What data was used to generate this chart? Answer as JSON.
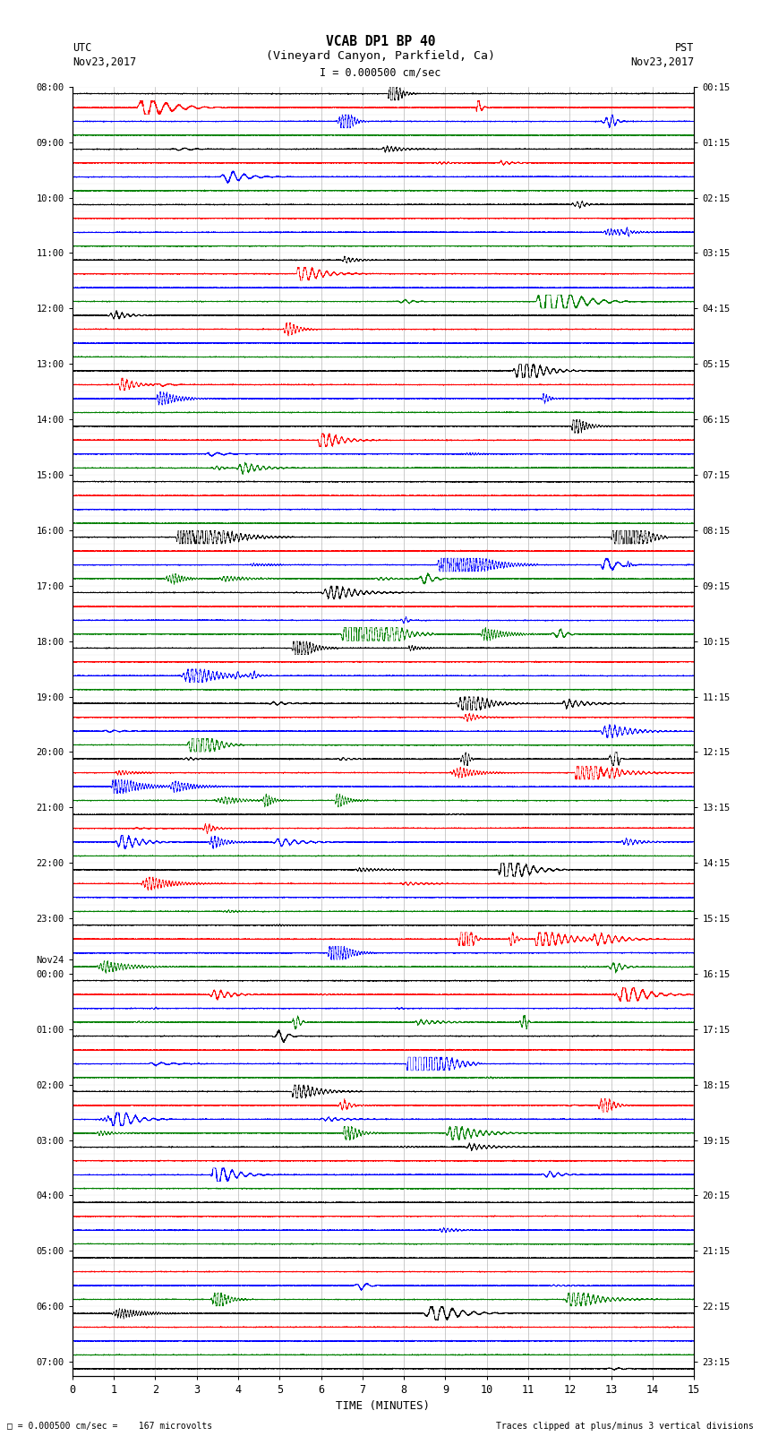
{
  "title_line1": "VCAB DP1 BP 40",
  "title_line2": "(Vineyard Canyon, Parkfield, Ca)",
  "title_line3": "I = 0.000500 cm/sec",
  "left_label_top": "UTC",
  "left_label_date": "Nov23,2017",
  "right_label_top": "PST",
  "right_label_date": "Nov23,2017",
  "bottom_label": "TIME (MINUTES)",
  "footer_left": "= 0.000500 cm/sec =    167 microvolts",
  "footer_right": "Traces clipped at plus/minus 3 vertical divisions",
  "utc_labels": [
    [
      "08:00",
      0
    ],
    [
      "09:00",
      4
    ],
    [
      "10:00",
      8
    ],
    [
      "11:00",
      12
    ],
    [
      "12:00",
      16
    ],
    [
      "13:00",
      20
    ],
    [
      "14:00",
      24
    ],
    [
      "15:00",
      28
    ],
    [
      "16:00",
      32
    ],
    [
      "17:00",
      36
    ],
    [
      "18:00",
      40
    ],
    [
      "19:00",
      44
    ],
    [
      "20:00",
      48
    ],
    [
      "21:00",
      52
    ],
    [
      "22:00",
      56
    ],
    [
      "23:00",
      60
    ],
    [
      "Nov24",
      63
    ],
    [
      "00:00",
      64
    ],
    [
      "01:00",
      68
    ],
    [
      "02:00",
      72
    ],
    [
      "03:00",
      76
    ],
    [
      "04:00",
      80
    ],
    [
      "05:00",
      84
    ],
    [
      "06:00",
      88
    ],
    [
      "07:00",
      92
    ]
  ],
  "pst_labels": [
    [
      "00:15",
      0
    ],
    [
      "01:15",
      4
    ],
    [
      "02:15",
      8
    ],
    [
      "03:15",
      12
    ],
    [
      "04:15",
      16
    ],
    [
      "05:15",
      20
    ],
    [
      "06:15",
      24
    ],
    [
      "07:15",
      28
    ],
    [
      "08:15",
      32
    ],
    [
      "09:15",
      36
    ],
    [
      "10:15",
      40
    ],
    [
      "11:15",
      44
    ],
    [
      "12:15",
      48
    ],
    [
      "13:15",
      52
    ],
    [
      "14:15",
      56
    ],
    [
      "15:15",
      60
    ],
    [
      "16:15",
      64
    ],
    [
      "17:15",
      68
    ],
    [
      "18:15",
      72
    ],
    [
      "19:15",
      76
    ],
    [
      "20:15",
      80
    ],
    [
      "21:15",
      84
    ],
    [
      "22:15",
      88
    ],
    [
      "23:15",
      92
    ]
  ],
  "colors": [
    "black",
    "red",
    "blue",
    "green"
  ],
  "n_rows": 93,
  "xmin": 0,
  "xmax": 15,
  "bg_color": "white",
  "seed": 12345
}
